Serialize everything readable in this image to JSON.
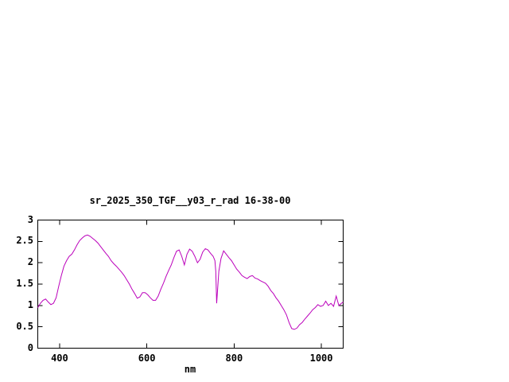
{
  "page": {
    "background": "#ffffff"
  },
  "chart_data": {
    "type": "line",
    "title": "sr_2025_350_TGF__y03_r_rad 16-38-00",
    "xlabel": "nm",
    "ylabel": "",
    "xlim": [
      350,
      1050
    ],
    "ylim": [
      0,
      3
    ],
    "xticks": [
      400,
      600,
      800,
      1000
    ],
    "yticks": [
      0,
      0.5,
      1,
      1.5,
      2,
      2.5,
      3
    ],
    "grid": false,
    "legend": "none",
    "frame_color": "#000000",
    "line_color": "#bb00bb",
    "series": [
      {
        "name": "sr_2025_350_TGF__y03_r_rad",
        "points": [
          [
            350,
            0.95
          ],
          [
            356,
            1.05
          ],
          [
            362,
            1.12
          ],
          [
            368,
            1.15
          ],
          [
            374,
            1.08
          ],
          [
            380,
            1.02
          ],
          [
            386,
            1.05
          ],
          [
            392,
            1.18
          ],
          [
            398,
            1.45
          ],
          [
            404,
            1.7
          ],
          [
            410,
            1.92
          ],
          [
            416,
            2.05
          ],
          [
            422,
            2.15
          ],
          [
            428,
            2.2
          ],
          [
            434,
            2.3
          ],
          [
            440,
            2.42
          ],
          [
            446,
            2.52
          ],
          [
            452,
            2.58
          ],
          [
            458,
            2.63
          ],
          [
            464,
            2.65
          ],
          [
            470,
            2.62
          ],
          [
            476,
            2.57
          ],
          [
            482,
            2.52
          ],
          [
            488,
            2.46
          ],
          [
            494,
            2.38
          ],
          [
            500,
            2.3
          ],
          [
            506,
            2.22
          ],
          [
            512,
            2.15
          ],
          [
            518,
            2.05
          ],
          [
            524,
            1.98
          ],
          [
            530,
            1.92
          ],
          [
            536,
            1.85
          ],
          [
            542,
            1.78
          ],
          [
            548,
            1.7
          ],
          [
            554,
            1.6
          ],
          [
            560,
            1.5
          ],
          [
            566,
            1.38
          ],
          [
            572,
            1.28
          ],
          [
            578,
            1.17
          ],
          [
            584,
            1.2
          ],
          [
            590,
            1.3
          ],
          [
            596,
            1.3
          ],
          [
            602,
            1.25
          ],
          [
            608,
            1.18
          ],
          [
            614,
            1.12
          ],
          [
            620,
            1.12
          ],
          [
            626,
            1.22
          ],
          [
            632,
            1.38
          ],
          [
            638,
            1.52
          ],
          [
            644,
            1.68
          ],
          [
            650,
            1.82
          ],
          [
            656,
            1.95
          ],
          [
            662,
            2.12
          ],
          [
            668,
            2.27
          ],
          [
            674,
            2.3
          ],
          [
            680,
            2.15
          ],
          [
            686,
            1.95
          ],
          [
            692,
            2.2
          ],
          [
            698,
            2.32
          ],
          [
            704,
            2.27
          ],
          [
            710,
            2.15
          ],
          [
            716,
            2.0
          ],
          [
            722,
            2.08
          ],
          [
            728,
            2.25
          ],
          [
            734,
            2.33
          ],
          [
            740,
            2.3
          ],
          [
            746,
            2.22
          ],
          [
            752,
            2.15
          ],
          [
            756,
            2.05
          ],
          [
            758,
            1.8
          ],
          [
            760,
            1.05
          ],
          [
            762,
            1.35
          ],
          [
            765,
            1.8
          ],
          [
            770,
            2.1
          ],
          [
            776,
            2.28
          ],
          [
            782,
            2.2
          ],
          [
            788,
            2.12
          ],
          [
            794,
            2.05
          ],
          [
            800,
            1.95
          ],
          [
            806,
            1.85
          ],
          [
            812,
            1.78
          ],
          [
            818,
            1.7
          ],
          [
            824,
            1.66
          ],
          [
            830,
            1.63
          ],
          [
            836,
            1.68
          ],
          [
            842,
            1.7
          ],
          [
            848,
            1.64
          ],
          [
            854,
            1.62
          ],
          [
            860,
            1.58
          ],
          [
            866,
            1.55
          ],
          [
            872,
            1.52
          ],
          [
            878,
            1.45
          ],
          [
            884,
            1.35
          ],
          [
            890,
            1.28
          ],
          [
            896,
            1.18
          ],
          [
            902,
            1.1
          ],
          [
            908,
            1.0
          ],
          [
            914,
            0.9
          ],
          [
            920,
            0.78
          ],
          [
            926,
            0.6
          ],
          [
            932,
            0.46
          ],
          [
            938,
            0.44
          ],
          [
            944,
            0.47
          ],
          [
            950,
            0.55
          ],
          [
            956,
            0.6
          ],
          [
            962,
            0.68
          ],
          [
            968,
            0.75
          ],
          [
            974,
            0.82
          ],
          [
            980,
            0.9
          ],
          [
            986,
            0.95
          ],
          [
            992,
            1.02
          ],
          [
            998,
            0.98
          ],
          [
            1004,
            1.0
          ],
          [
            1010,
            1.1
          ],
          [
            1016,
            1.0
          ],
          [
            1022,
            1.05
          ],
          [
            1028,
            0.98
          ],
          [
            1034,
            1.22
          ],
          [
            1040,
            1.0
          ],
          [
            1046,
            1.05
          ],
          [
            1050,
            1.08
          ]
        ]
      }
    ]
  }
}
